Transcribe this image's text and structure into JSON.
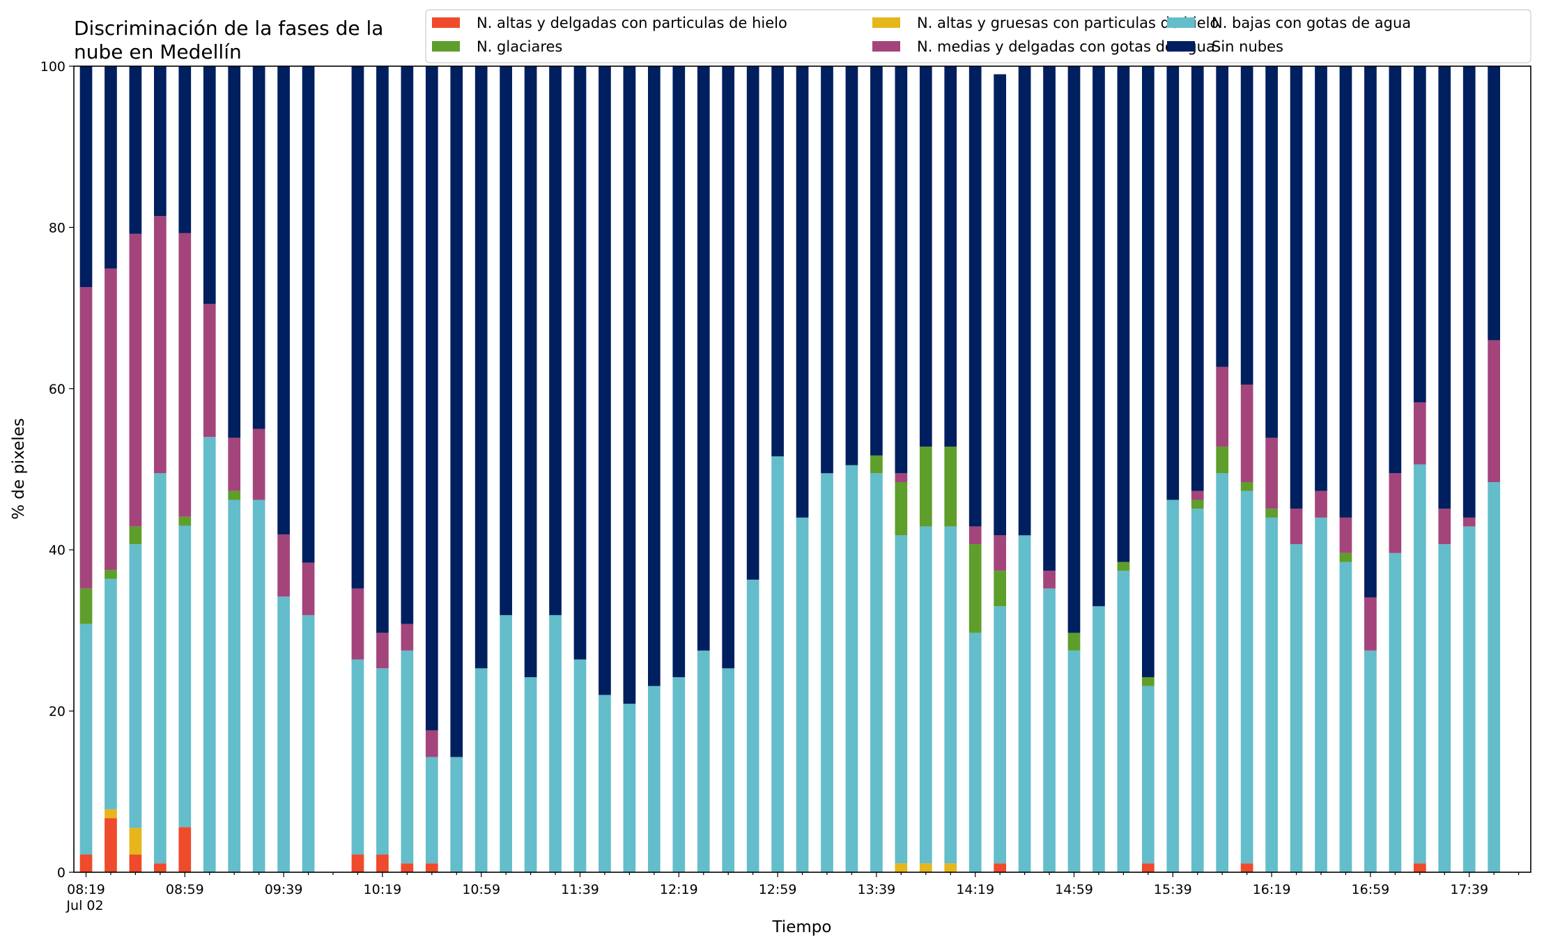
{
  "chart_data": {
    "type": "bar",
    "stacked": true,
    "title": "Discriminación de la fases de la nube en Medellín",
    "title_lines": [
      "Discriminación de la fases de la",
      "nube en Medellín"
    ],
    "xlabel": "Tiempo",
    "ylabel": "% de pixeles",
    "ylim": [
      0,
      100
    ],
    "yticks": [
      0,
      20,
      40,
      60,
      80,
      100
    ],
    "grid": false,
    "legend_position": "top-right",
    "date_label": "Jul 02",
    "x": [
      "08:19",
      "08:29",
      "08:39",
      "08:49",
      "08:59",
      "09:09",
      "09:19",
      "09:29",
      "09:39",
      "09:49",
      "09:59",
      "10:09",
      "10:19",
      "10:29",
      "10:39",
      "10:49",
      "10:59",
      "11:09",
      "11:19",
      "11:29",
      "11:39",
      "11:49",
      "11:59",
      "12:09",
      "12:19",
      "12:29",
      "12:39",
      "12:49",
      "12:59",
      "13:09",
      "13:19",
      "13:29",
      "13:39",
      "13:49",
      "13:59",
      "14:09",
      "14:19",
      "14:29",
      "14:39",
      "14:49",
      "14:59",
      "15:09",
      "15:19",
      "15:29",
      "15:39",
      "15:49",
      "15:59",
      "16:09",
      "16:19",
      "16:29",
      "16:39",
      "16:49",
      "16:59",
      "17:09",
      "17:19",
      "17:29",
      "17:39",
      "17:49"
    ],
    "xtick_labels": [
      "08:19",
      "08:59",
      "09:39",
      "10:19",
      "10:59",
      "11:39",
      "12:19",
      "12:59",
      "13:39",
      "14:19",
      "14:59",
      "15:39",
      "16:19",
      "16:59",
      "17:39"
    ],
    "legend_order": [
      0,
      1,
      2,
      3,
      4,
      5
    ],
    "legend_columns": 3,
    "series": [
      {
        "name": "N. altas y delgadas con particulas de hielo",
        "color": "#ee4a2b",
        "values": [
          2.2,
          6.7,
          2.2,
          1.1,
          5.6,
          0,
          0,
          0,
          0,
          0,
          null,
          2.2,
          2.2,
          1.1,
          1.1,
          0,
          0,
          0,
          0,
          0,
          0,
          0,
          0,
          0,
          0,
          0,
          0,
          0,
          0,
          0,
          0,
          0,
          0,
          0,
          0,
          0,
          0,
          1.1,
          0,
          0,
          0,
          0,
          0,
          1.1,
          0,
          0,
          0,
          1.1,
          0,
          0,
          0,
          0,
          0,
          0,
          1.1,
          0,
          0,
          0
        ]
      },
      {
        "name": "N. altas y gruesas con particulas de hielo",
        "color": "#e6b61c",
        "values": [
          0,
          1.1,
          3.3,
          0,
          0,
          0,
          0,
          0,
          0,
          0,
          null,
          0,
          0,
          0,
          0,
          0,
          0,
          0,
          0,
          0,
          0,
          0,
          0,
          0,
          0,
          0,
          0,
          0,
          0,
          0,
          0,
          0,
          0,
          1.1,
          1.1,
          1.1,
          0,
          0,
          0,
          0,
          0,
          0,
          0,
          0,
          0,
          0,
          0,
          0,
          0,
          0,
          0,
          0,
          0,
          0,
          0,
          0,
          0,
          0
        ]
      },
      {
        "name": "N. bajas con gotas de agua",
        "color": "#64bdca",
        "values": [
          28.6,
          28.6,
          35.2,
          48.4,
          37.4,
          54,
          46.2,
          46.2,
          34.2,
          31.9,
          null,
          24.2,
          23.1,
          26.4,
          13.2,
          14.3,
          25.3,
          31.9,
          24.2,
          31.9,
          26.4,
          22,
          20.9,
          23.1,
          24.2,
          27.5,
          25.3,
          36.3,
          51.6,
          44,
          49.5,
          50.5,
          49.5,
          40.7,
          41.8,
          41.8,
          29.7,
          31.9,
          41.8,
          35.2,
          27.5,
          33,
          37.4,
          22,
          46.2,
          45.1,
          49.5,
          46.2,
          44,
          40.7,
          44,
          38.5,
          27.5,
          39.6,
          49.5,
          40.7,
          42.9,
          48.4
        ]
      },
      {
        "name": "N. glaciares",
        "color": "#5e9e2b",
        "values": [
          4.4,
          1.1,
          2.2,
          0,
          1.1,
          0,
          1.1,
          0,
          0,
          0,
          null,
          0,
          0,
          0,
          0,
          0,
          0,
          0,
          0,
          0,
          0,
          0,
          0,
          0,
          0,
          0,
          0,
          0,
          0,
          0,
          0,
          0,
          2.2,
          6.6,
          9.9,
          9.9,
          11,
          4.4,
          0,
          0,
          2.2,
          0,
          1.1,
          1.1,
          0,
          1.1,
          3.3,
          1.1,
          1.1,
          0,
          0,
          1.1,
          0,
          0,
          0,
          0,
          0,
          0
        ]
      },
      {
        "name": "N. medias y delgadas con gotas de agua",
        "color": "#a3457b",
        "values": [
          37.4,
          37.4,
          36.3,
          31.9,
          35.2,
          16.5,
          6.6,
          8.8,
          7.7,
          6.5,
          null,
          8.8,
          4.4,
          3.3,
          3.3,
          0,
          0,
          0,
          0,
          0,
          0,
          0,
          0,
          0,
          0,
          0,
          0,
          0,
          0,
          0,
          0,
          0,
          0,
          1.1,
          0,
          0,
          2.2,
          4.4,
          0,
          2.2,
          0,
          0,
          0,
          0,
          0,
          1.1,
          9.9,
          12.1,
          8.8,
          4.4,
          3.3,
          4.4,
          6.6,
          9.9,
          7.7,
          4.4,
          1.1,
          17.6
        ]
      },
      {
        "name": "Sin nubes",
        "color": "#001f5f",
        "values": [
          27.4,
          25.1,
          20.8,
          18.6,
          20.7,
          29.5,
          46.1,
          45,
          58.1,
          61.6,
          null,
          64.8,
          70.3,
          69.2,
          82.4,
          85.7,
          74.7,
          68.1,
          75.8,
          68.1,
          73.6,
          78,
          79.1,
          76.9,
          75.8,
          72.5,
          74.7,
          63.7,
          48.4,
          56,
          50.5,
          49.5,
          48.3,
          50.5,
          47.2,
          47.2,
          57.1,
          57.2,
          58.2,
          62.6,
          70.3,
          67,
          61.5,
          75.8,
          53.8,
          52.7,
          37.3,
          39.5,
          46.1,
          54.9,
          52.7,
          56,
          65.9,
          50.5,
          41.7,
          54.9,
          56,
          34
        ]
      }
    ]
  }
}
